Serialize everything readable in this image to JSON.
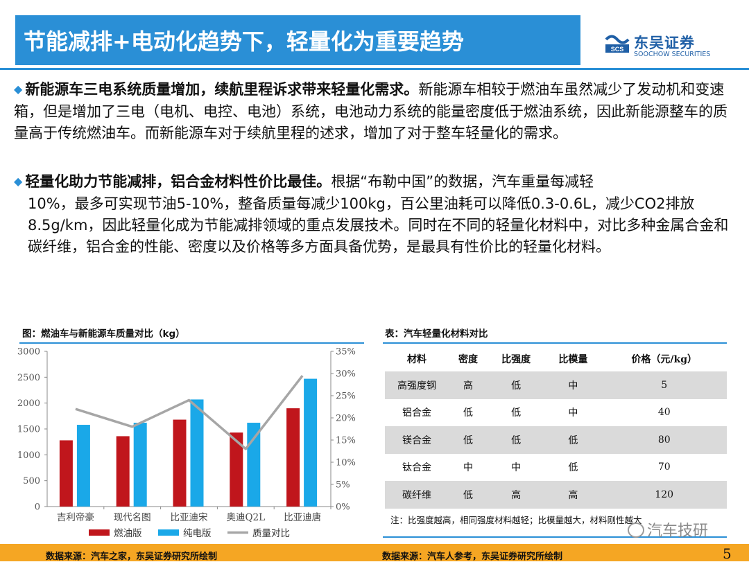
{
  "header": {
    "title": "节能减排+电动化趋势下，轻量化为重要趋势",
    "logo_cn": "东吴证券",
    "logo_en": "SOOCHOW SECURITIES",
    "logo_mark": "SCS",
    "brand_color": "#2a8fd6"
  },
  "paragraphs": [
    {
      "lead": "新能源车三电系统质量增加，续航里程诉求带来轻量化需求。",
      "body": "新能源车相较于燃油车虽然减少了发动机和变速箱，但是增加了三电（电机、电控、电池）系统，电池动力系统的能量密度低于燃油系统，因此新能源整车的质量高于传统燃油车。而新能源车对于续航里程的述求，增加了对于整车轻量化的需求。"
    },
    {
      "lead": "轻量化助力节能减排，铝合金材料性价比最佳。",
      "body_line1": "根据“布勒中国”的数据，汽车重量每减轻",
      "body_rest": "10%，最多可实现节油5-10%，整备质量每减少100kg，百公里油耗可以降低0.3-0.6L，减少CO2排放8.5g/km，因此轻量化成为节能减排领域的重点发展技术。同时在不同的轻量化材料中，对比多种金属合金和碳纤维，铝合金的性能、密度以及价格等多方面具备优势，是最具有性价比的轻量化材料。"
    }
  ],
  "figure_caption": "图：燃油车与新能源车质量对比（kg）",
  "table_caption": "表：汽车轻量化材料对比",
  "chart_data": {
    "type": "bar",
    "categories": [
      "吉利帝豪",
      "现代名图",
      "比亚迪宋",
      "奥迪Q2L",
      "比亚迪唐"
    ],
    "series": [
      {
        "name": "燃油版",
        "type": "bar",
        "color": "#c0161c",
        "values": [
          1280,
          1360,
          1680,
          1430,
          1900
        ]
      },
      {
        "name": "纯电版",
        "type": "bar",
        "color": "#1aa8e8",
        "values": [
          1580,
          1620,
          2070,
          1620,
          2470
        ]
      },
      {
        "name": "质量对比",
        "type": "line",
        "axis": "right",
        "color": "#a6a6a6",
        "values": [
          0.22,
          0.18,
          0.24,
          0.13,
          0.295
        ]
      }
    ],
    "y_left": {
      "min": 0,
      "max": 3000,
      "step": 500,
      "ticks": [
        "0",
        "500",
        "1000",
        "1500",
        "2000",
        "2500",
        "3000"
      ]
    },
    "y_right": {
      "min": 0,
      "max": 0.35,
      "step": 0.05,
      "ticks": [
        "0%",
        "5%",
        "10%",
        "15%",
        "20%",
        "25%",
        "30%",
        "35%"
      ]
    },
    "grid": false,
    "legend_position": "bottom"
  },
  "table": {
    "headers": [
      "材料",
      "密度",
      "比强度",
      "比模量",
      "价格（元/kg）"
    ],
    "rows": [
      [
        "高强度钢",
        "高",
        "低",
        "中",
        "5"
      ],
      [
        "铝合金",
        "低",
        "低",
        "中",
        "40"
      ],
      [
        "镁合金",
        "低",
        "低",
        "低",
        "80"
      ],
      [
        "钛合金",
        "中",
        "中",
        "低",
        "70"
      ],
      [
        "碳纤维",
        "低",
        "高",
        "高",
        "120"
      ]
    ],
    "note": "注：比强度越高，相同强度材料越轻；比模量越大，材料刚性越大"
  },
  "watermark": "汽车技研",
  "footer": {
    "source_left": "数据来源：汽车之家，东吴证券研究所绘制",
    "source_right": "数据来源：汽车人参考，东吴证券研究所绘制",
    "page_number": "5",
    "color": "#f5a623"
  }
}
